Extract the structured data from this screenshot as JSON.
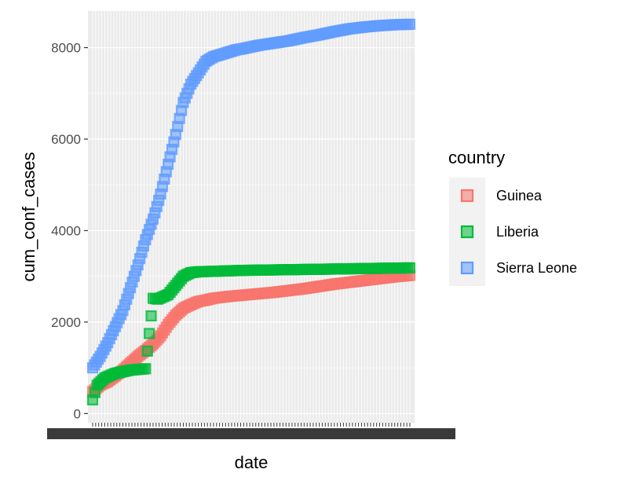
{
  "chart_data": {
    "type": "scatter",
    "title": "",
    "xlabel": "date",
    "ylabel": "cum_conf_cases",
    "ylim": [
      -200,
      8800
    ],
    "y_ticks": [
      0,
      2000,
      4000,
      6000,
      8000
    ],
    "y_tick_labels": [
      "0",
      "2000",
      "4000",
      "6000",
      "8000"
    ],
    "x_scale": "discrete",
    "x_tick_labels_note": "overplotted, illegible",
    "grid": true,
    "legend": {
      "title": "country",
      "position": "right"
    },
    "series": [
      {
        "name": "Guinea",
        "color": "#F8766D",
        "x": [
          0,
          5,
          10,
          15,
          20,
          25,
          30,
          35,
          40,
          45,
          50,
          55,
          60,
          65,
          70,
          75,
          80,
          90,
          100,
          110,
          120,
          130,
          140,
          150,
          160,
          170,
          180,
          190,
          200,
          210
        ],
        "y": [
          480,
          620,
          700,
          820,
          950,
          1100,
          1250,
          1380,
          1520,
          1700,
          1950,
          2150,
          2300,
          2380,
          2450,
          2480,
          2520,
          2560,
          2590,
          2620,
          2650,
          2690,
          2730,
          2780,
          2830,
          2870,
          2910,
          2950,
          2990,
          3020
        ]
      },
      {
        "name": "Liberia",
        "color": "#00BA38",
        "x": [
          0,
          3,
          8,
          15,
          25,
          35,
          40,
          43,
          50,
          55,
          60,
          65,
          70,
          80,
          90,
          100,
          110,
          120,
          130,
          140,
          150,
          160,
          170,
          180,
          190,
          200,
          210
        ],
        "y": [
          300,
          620,
          780,
          880,
          950,
          980,
          2520,
          2500,
          2600,
          2800,
          3000,
          3080,
          3100,
          3110,
          3120,
          3130,
          3135,
          3140,
          3145,
          3150,
          3155,
          3160,
          3165,
          3170,
          3175,
          3180,
          3185
        ]
      },
      {
        "name": "Sierra Leone",
        "color": "#619CFF",
        "x": [
          0,
          5,
          10,
          15,
          20,
          25,
          30,
          35,
          40,
          45,
          50,
          55,
          60,
          65,
          70,
          75,
          80,
          85,
          90,
          95,
          100,
          110,
          120,
          130,
          140,
          150,
          160,
          170,
          180,
          190,
          200,
          210
        ],
        "y": [
          1000,
          1250,
          1550,
          1900,
          2250,
          2750,
          3250,
          3800,
          4250,
          4800,
          5450,
          6100,
          6800,
          7200,
          7450,
          7700,
          7800,
          7850,
          7900,
          7950,
          7980,
          8050,
          8100,
          8150,
          8220,
          8280,
          8350,
          8410,
          8450,
          8480,
          8500,
          8510
        ]
      }
    ]
  }
}
